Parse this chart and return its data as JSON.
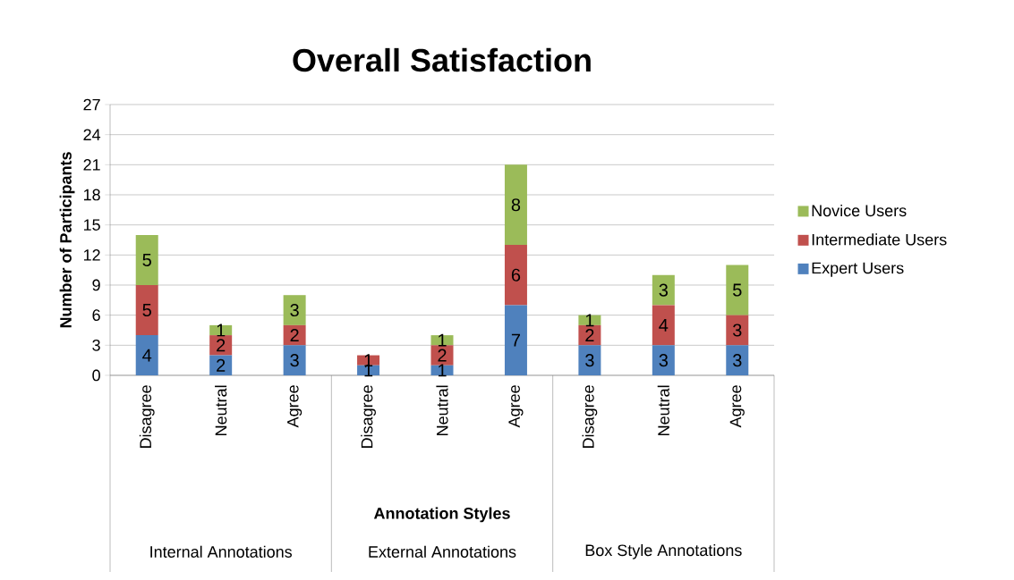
{
  "chart_data": {
    "type": "bar",
    "title": "Overall Satisfaction",
    "xlabel": "Annotation Styles",
    "ylabel": "Number of Participants",
    "categories": [
      "Disagree",
      "Neutral",
      "Agree",
      "Disagree",
      "Neutral",
      "Agree",
      "Disagree",
      "Neutral",
      "Agree"
    ],
    "annotations": [
      "Internal Annotations",
      "External Annotations",
      "Box Style Annotations"
    ],
    "stacked": true,
    "series": [
      {
        "name": "Expert Users",
        "color": "#4f81bd",
        "values": [
          4,
          2,
          3,
          1,
          1,
          7,
          3,
          3,
          3
        ]
      },
      {
        "name": "Intermediate Users",
        "color": "#c0504d",
        "values": [
          5,
          2,
          2,
          1,
          2,
          6,
          2,
          4,
          3
        ]
      },
      {
        "name": "Novice Users",
        "color": "#9bbb59",
        "values": [
          5,
          1,
          3,
          null,
          1,
          8,
          1,
          3,
          5
        ]
      }
    ],
    "ylim": [
      0,
      27
    ],
    "yticks": [
      0,
      3,
      6,
      9,
      12,
      15,
      18,
      21,
      24,
      27
    ],
    "grid": "y",
    "legend": "right",
    "data_labels": true
  }
}
